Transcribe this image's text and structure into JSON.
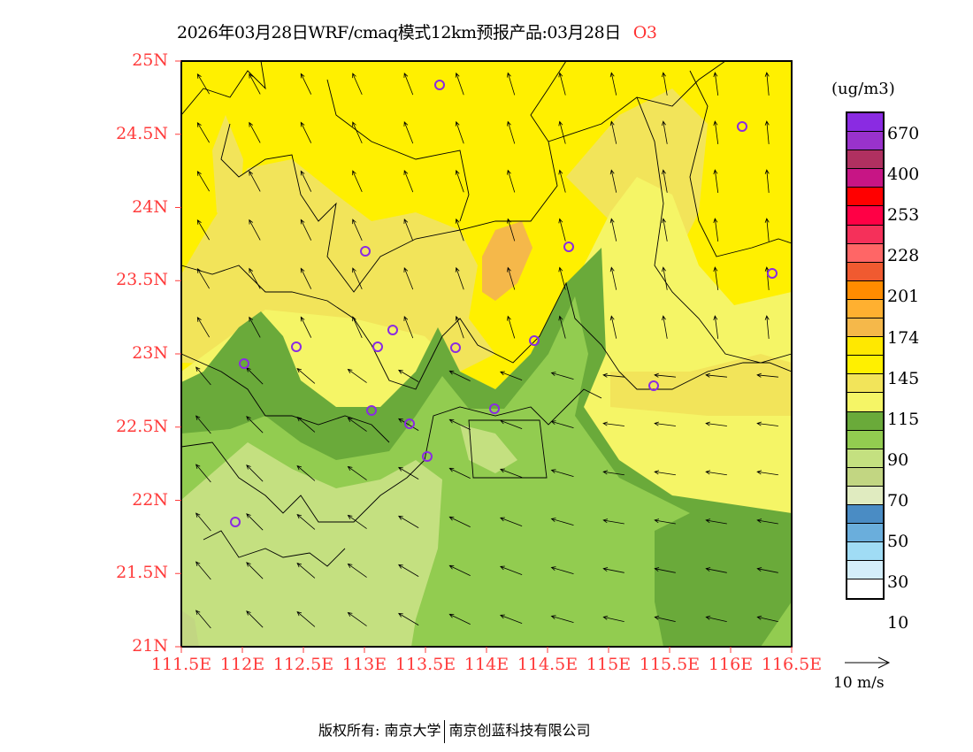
{
  "title": {
    "main": "2026年03月28日WRF/cmaq模式12km预报产品:03月28日",
    "species": "O3"
  },
  "axes": {
    "lat_labels": [
      "25N",
      "24.5N",
      "24N",
      "23.5N",
      "23N",
      "22.5N",
      "22N",
      "21.5N",
      "21N"
    ],
    "lon_labels": [
      "111.5E",
      "112E",
      "112.5E",
      "113E",
      "113.5E",
      "114E",
      "114.5E",
      "115E",
      "115.5E",
      "116E",
      "116.5E"
    ]
  },
  "legend": {
    "unit": "(ug/m3)",
    "colors": [
      "#8a2be2",
      "#9932cc",
      "#b03060",
      "#c71585",
      "#ff0000",
      "#ff0045",
      "#f5305a",
      "#ff6666",
      "#f05a30",
      "#ff8c00",
      "#ffb030",
      "#f5b84a",
      "#ffe800",
      "#fff000",
      "#f2e45a",
      "#f5f566",
      "#6aaa3a",
      "#92cc50",
      "#c4e080",
      "#c2d682",
      "#e0ebc0",
      "#4a8cc4",
      "#6aaedc",
      "#a0dcf5",
      "#d4eefa",
      "#ffffff"
    ],
    "labels": [
      "670",
      "400",
      "253",
      "228",
      "201",
      "174",
      "145",
      "115",
      "90",
      "70",
      "50",
      "30",
      "10"
    ],
    "wind_ref": "10 m/s"
  },
  "footer": {
    "left": "版权所有: 南京大学",
    "right": "南京创蓝科技有限公司"
  }
}
